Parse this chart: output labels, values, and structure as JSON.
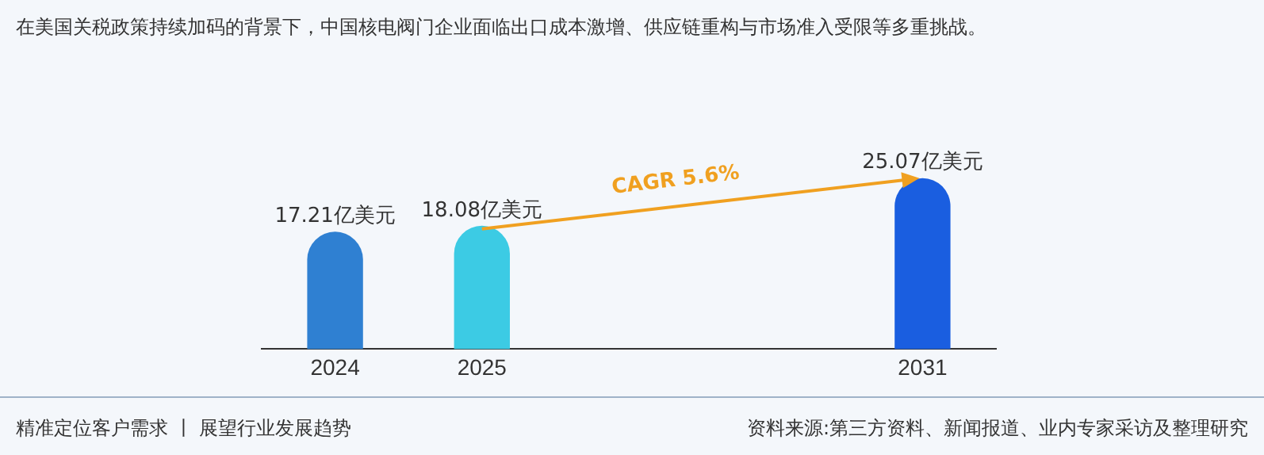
{
  "chart_data": {
    "type": "bar",
    "title": "在美国关税政策持续加码的背景下，中国核电阀门企业面临出口成本激增、供应链重构与市场准入受限等多重挑战。",
    "categories": [
      "2024",
      "2025",
      null,
      null,
      "2031"
    ],
    "values": [
      17.21,
      18.08,
      null,
      null,
      25.07
    ],
    "colors": [
      "#2f80d2",
      "#3ccbe4",
      null,
      null,
      "#1a5ee0"
    ],
    "value_labels": [
      "17.21亿美元",
      "18.08亿美元",
      null,
      null,
      "25.07亿美元"
    ],
    "tick_labels": "x",
    "grid": false,
    "legend": false,
    "annotations": [
      "CAGR 5.6%",
      "精准定位客户需求 丨 展望行业发展趋势",
      "资料来源:第三方资料、新闻报道、业内专家采访及整理研究"
    ]
  }
}
